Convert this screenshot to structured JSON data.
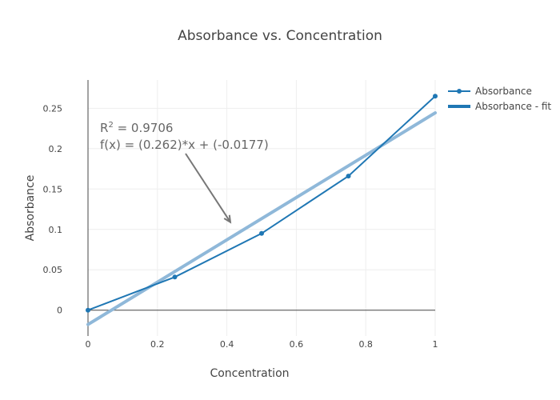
{
  "chart_data": {
    "type": "line",
    "title": "Absorbance vs. Concentration",
    "xlabel": "Concentration",
    "ylabel": "Absorbance",
    "xlim": [
      0,
      1
    ],
    "ylim": [
      -0.032,
      0.285
    ],
    "xticks": [
      0,
      0.2,
      0.4,
      0.6,
      0.8,
      1
    ],
    "xtick_labels": [
      "0",
      "0.2",
      "0.4",
      "0.6",
      "0.8",
      "1"
    ],
    "yticks": [
      0,
      0.05,
      0.1,
      0.15,
      0.2,
      0.25
    ],
    "ytick_labels": [
      "0",
      "0.05",
      "0.1",
      "0.15",
      "0.2",
      "0.25"
    ],
    "grid": true,
    "legend_position": "top-right",
    "series": [
      {
        "name": "Absorbance",
        "mode": "lines+markers",
        "color": "#1f77b4",
        "x": [
          0,
          0.25,
          0.5,
          0.75,
          1
        ],
        "y": [
          0,
          0.041,
          0.095,
          0.166,
          0.265
        ]
      },
      {
        "name": "Absorbance - fit",
        "mode": "lines",
        "color": "#8fb8d9",
        "x": [
          0,
          1
        ],
        "y": [
          -0.0177,
          0.2443
        ]
      }
    ],
    "annotation": {
      "r_label": "R",
      "r_sup": "2",
      "r_value": " = 0.9706",
      "fx": "f(x) = (0.262)*x + (-0.0177)",
      "arrow_to": [
        0.41,
        0.109
      ]
    }
  }
}
